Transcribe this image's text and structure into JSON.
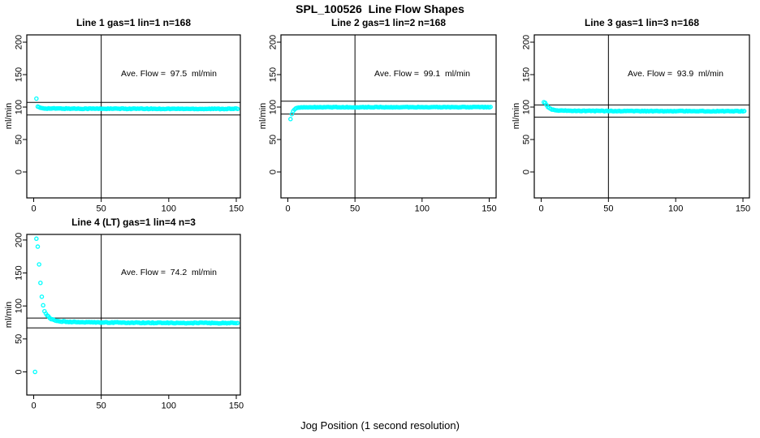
{
  "main_title": "SPL_100526  Line Flow Shapes",
  "xlabel": "Jog Position (1 second resolution)",
  "colors": {
    "marker": "#00FFFF",
    "line": "#000000",
    "background": "#FFFFFF",
    "text": "#000000"
  },
  "chart_data": [
    {
      "type": "scatter",
      "title": "Line 1 gas=1 lin=1 n=168",
      "ylabel": "ml/min",
      "annotation": "Ave. Flow =  97.5  ml/min",
      "ave_flow": 97.5,
      "n": 168,
      "x_ticks": [
        0,
        50,
        100,
        150
      ],
      "y_ticks": [
        0,
        50,
        100,
        150,
        200
      ],
      "xlim": [
        -5,
        156
      ],
      "ylim": [
        -40,
        215
      ],
      "vline_x": 50,
      "ref_lines": [
        107.25,
        87.75
      ],
      "grid": false,
      "outlier_points": [
        [
          2,
          113
        ]
      ],
      "band": {
        "x_start": 3,
        "x_end": 151,
        "a1": 2.6,
        "t1": 2.0,
        "a2": 0.7,
        "t2": 50,
        "asymptote": 97.2,
        "noise": 0.55
      }
    },
    {
      "type": "scatter",
      "title": "Line 2 gas=1 lin=2 n=168",
      "ylabel": "ml/min",
      "annotation": "Ave. Flow =  99.1  ml/min",
      "ave_flow": 99.1,
      "n": 168,
      "x_ticks": [
        0,
        50,
        100,
        150
      ],
      "y_ticks": [
        0,
        50,
        100,
        150,
        200
      ],
      "xlim": [
        -5,
        156
      ],
      "ylim": [
        -40,
        215
      ],
      "vline_x": 50,
      "ref_lines": [
        109.0,
        89.2
      ],
      "grid": false,
      "outlier_points": [
        [
          2,
          81.5
        ]
      ],
      "band": {
        "x_start": 3,
        "x_end": 151,
        "a1": -10.9,
        "t1": 1.6,
        "a2": -0.2,
        "t2": 60,
        "asymptote": 99.9,
        "noise": 0.5
      }
    },
    {
      "type": "scatter",
      "title": "Line 3 gas=1 lin=3 n=168",
      "ylabel": "ml/min",
      "annotation": "Ave. Flow =  93.9  ml/min",
      "ave_flow": 93.9,
      "n": 168,
      "x_ticks": [
        0,
        50,
        100,
        150
      ],
      "y_ticks": [
        0,
        50,
        100,
        150,
        200
      ],
      "xlim": [
        -5,
        156
      ],
      "ylim": [
        -40,
        215
      ],
      "vline_x": 50,
      "ref_lines": [
        103.3,
        84.5
      ],
      "grid": false,
      "outlier_points": [
        [
          2,
          107.5
        ],
        [
          3,
          106.5
        ]
      ],
      "band": {
        "x_start": 4,
        "x_end": 151,
        "a1": 8.4,
        "t1": 2.5,
        "a2": 1.2,
        "t2": 40,
        "asymptote": 93.6,
        "noise": 0.5
      }
    },
    {
      "type": "scatter",
      "title": "Line 4 (LT) gas=1 lin=4 n=3",
      "ylabel": "ml/min",
      "annotation": "Ave. Flow =  74.2  ml/min",
      "ave_flow": 74.2,
      "n": 3,
      "x_ticks": [
        0,
        50,
        100,
        150
      ],
      "y_ticks": [
        0,
        50,
        100,
        150,
        200
      ],
      "xlim": [
        -5,
        156
      ],
      "ylim": [
        -35,
        208
      ],
      "vline_x": 50,
      "ref_lines": [
        81.6,
        66.8
      ],
      "grid": false,
      "outlier_points": [
        [
          1,
          0
        ],
        [
          2,
          202
        ],
        [
          3,
          190
        ],
        [
          4,
          163
        ],
        [
          5,
          135
        ],
        [
          6,
          114
        ],
        [
          7,
          101
        ],
        [
          8,
          92
        ]
      ],
      "band": {
        "x_start": 9,
        "x_end": 151,
        "a1": 12.0,
        "t1": 3.5,
        "a2": 3.0,
        "t2": 45,
        "asymptote": 73.9,
        "noise": 0.6
      }
    }
  ]
}
